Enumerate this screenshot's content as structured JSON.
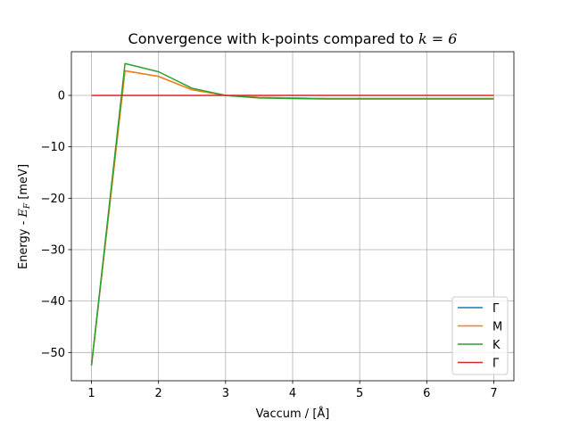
{
  "chart_data": {
    "type": "line",
    "title": "Convergence with k-points compared to ",
    "title_math": "k = 6",
    "xlabel": "Vaccum / [Å]",
    "ylabel_prefix": "Energy - ",
    "ylabel_var": "E",
    "ylabel_sub": "F",
    "ylabel_suffix": " [meV]",
    "xlim": [
      0.7,
      7.3
    ],
    "ylim": [
      -55.5,
      8.5
    ],
    "xticks": [
      1,
      2,
      3,
      4,
      5,
      6,
      7
    ],
    "xtick_labels": [
      "1",
      "2",
      "3",
      "4",
      "5",
      "6",
      "7"
    ],
    "yticks": [
      0,
      -10,
      -20,
      -30,
      -40,
      -50
    ],
    "ytick_labels": [
      "0",
      "−10",
      "−20",
      "−30",
      "−40",
      "−50"
    ],
    "grid": true,
    "legend_position": "bottom-right",
    "x": [
      1,
      1.5,
      2,
      2.5,
      3,
      3.5,
      4,
      4.5,
      5,
      5.5,
      6,
      6.5,
      7
    ],
    "series": [
      {
        "name": "Γ",
        "color": "#1f77b4",
        "values": [
          -52.5,
          4.8,
          3.7,
          1.1,
          0.0,
          -0.4,
          -0.5,
          -0.6,
          -0.6,
          -0.6,
          -0.6,
          -0.6,
          -0.6
        ]
      },
      {
        "name": "M",
        "color": "#ff7f0e",
        "values": [
          -52.5,
          4.8,
          3.7,
          1.1,
          0.0,
          -0.4,
          -0.5,
          -0.6,
          -0.6,
          -0.6,
          -0.6,
          -0.6,
          -0.6
        ]
      },
      {
        "name": "K",
        "color": "#2ca02c",
        "values": [
          -52.5,
          6.2,
          4.6,
          1.4,
          0.0,
          -0.5,
          -0.6,
          -0.7,
          -0.7,
          -0.7,
          -0.7,
          -0.7,
          -0.7
        ]
      },
      {
        "name": "Γ",
        "color": "#d62728",
        "values": [
          0,
          0,
          0,
          0,
          0,
          0,
          0,
          0,
          0,
          0,
          0,
          0,
          0
        ]
      }
    ]
  }
}
